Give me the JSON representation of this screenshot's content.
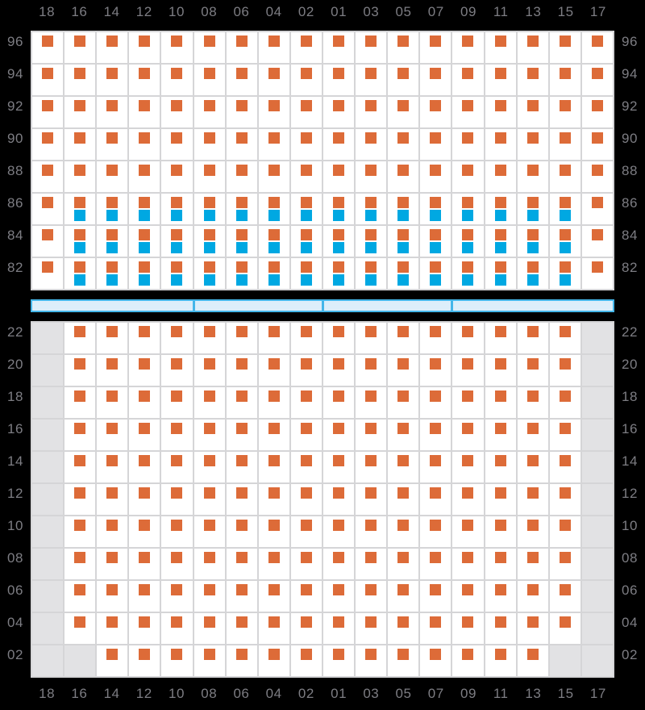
{
  "colors": {
    "background": "#000000",
    "seat_orange": "#DD6B38",
    "seat_blue": "#00A8E2",
    "cell_white": "#FFFFFF",
    "cell_blocked_gray": "#E2E2E4",
    "grid_line": "#D5D5D7",
    "label_gray": "#7D7D83",
    "aisle_fill": "#DCEEFA",
    "aisle_border": "#45B6E9"
  },
  "columns": [
    "18",
    "16",
    "14",
    "12",
    "10",
    "08",
    "06",
    "04",
    "02",
    "01",
    "03",
    "05",
    "07",
    "09",
    "11",
    "13",
    "15",
    "17"
  ],
  "cell_codes": {
    "O": "orange-seat-marker",
    "B": "orange-plus-blue-seat-markers",
    "X": "blocked-gray-cell"
  },
  "top_grid": {
    "row_labels": [
      "96",
      "94",
      "92",
      "90",
      "88",
      "86",
      "84",
      "82"
    ],
    "rows": [
      "OOOOOOOOOOOOOOOOOO",
      "OOOOOOOOOOOOOOOOOO",
      "OOOOOOOOOOOOOOOOOO",
      "OOOOOOOOOOOOOOOOOO",
      "OOOOOOOOOOOOOOOOOO",
      "OBBBBBBBBBBBBBBBBO",
      "OBBBBBBBBBBBBBBBBO",
      "OBBBBBBBBBBBBBBBBO"
    ]
  },
  "aisle": {
    "divider_after_columns": [
      5,
      9,
      13
    ],
    "total_columns": 18
  },
  "bottom_grid": {
    "row_labels": [
      "22",
      "20",
      "18",
      "16",
      "14",
      "12",
      "10",
      "08",
      "06",
      "04",
      "02"
    ],
    "rows": [
      "XOOOOOOOOOOOOOOOOX",
      "XOOOOOOOOOOOOOOOOX",
      "XOOOOOOOOOOOOOOOOX",
      "XOOOOOOOOOOOOOOOOX",
      "XOOOOOOOOOOOOOOOOX",
      "XOOOOOOOOOOOOOOOOX",
      "XOOOOOOOOOOOOOOOOX",
      "XOOOOOOOOOOOOOOOOX",
      "XOOOOOOOOOOOOOOOOX",
      "XOOOOOOOOOOOOOOOOX",
      "XXOOOOOOOOOOOOOOXX"
    ]
  }
}
